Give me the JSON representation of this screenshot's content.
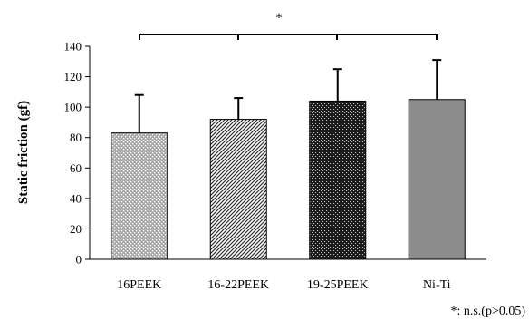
{
  "chart_data": {
    "type": "bar",
    "categories": [
      "16PEEK",
      "16-22PEEK",
      "19-25PEEK",
      "Ni-Ti"
    ],
    "values": [
      83,
      92,
      104,
      105
    ],
    "errors": [
      25,
      14,
      21,
      26
    ],
    "ylabel": "Static friction (gf)",
    "ylim": [
      0,
      140
    ],
    "yticks": [
      0,
      20,
      40,
      60,
      80,
      100,
      120,
      140
    ],
    "bar_fills": [
      "dots-light",
      "diagonal-hatch",
      "dots-dark",
      "solid-gray"
    ],
    "significance_marker": "*",
    "footnote": "*: n.s.(p>0.05)",
    "grid": false,
    "legend": "none"
  }
}
